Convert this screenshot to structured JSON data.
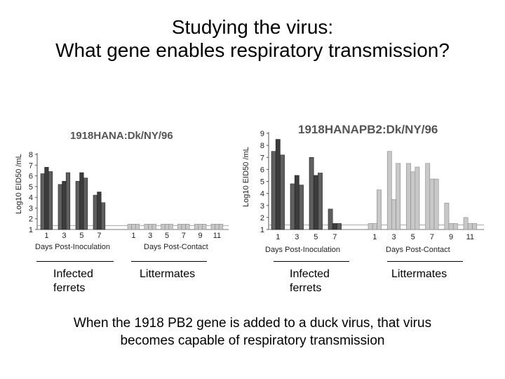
{
  "slide": {
    "title_line1": "Studying the virus:",
    "title_line2": "What gene enables respiratory transmission?",
    "caption_line1": "When the 1918 PB2 gene is added to a duck virus, that virus",
    "caption_line2": "becomes capable of respiratory transmission",
    "group_labels": {
      "left_infected": [
        "Infected",
        "ferrets"
      ],
      "left_littermates": "Littermates",
      "right_infected": [
        "Infected",
        "ferrets"
      ],
      "right_littermates": "Littermates"
    }
  },
  "colors": {
    "infected": "#5f5f5f",
    "infected_dark": "#3c3c3c",
    "contact": "#c8c8c8",
    "title_gray": "#555555"
  },
  "chart_data": [
    {
      "type": "bar",
      "title": "1918HANA:Dk/NY/96",
      "ylabel": "Log10 EID50 /mL",
      "ylim": [
        1,
        8
      ],
      "yticks": [
        1,
        2,
        3,
        4,
        5,
        6,
        7,
        8
      ],
      "inoculation": {
        "xlabel": "Days Post-Inoculation",
        "days": [
          "1",
          "3",
          "5",
          "7"
        ],
        "values": [
          [
            6.2,
            6.8,
            6.4
          ],
          [
            5.2,
            5.5,
            6.3
          ],
          [
            5.5,
            6.3,
            5.8
          ],
          [
            4.2,
            4.5,
            3.5
          ]
        ]
      },
      "contact": {
        "xlabel": "Days Post-Contact",
        "days": [
          "1",
          "3",
          "5",
          "7",
          "9",
          "11"
        ],
        "values": [
          [
            1.5,
            1.5,
            1.5
          ],
          [
            1.5,
            1.5,
            1.5
          ],
          [
            1.5,
            1.5,
            1.5
          ],
          [
            1.5,
            1.5,
            1.5
          ],
          [
            1.5,
            1.5,
            1.5
          ],
          [
            1.5,
            1.5,
            1.5
          ]
        ]
      }
    },
    {
      "type": "bar",
      "title": "1918HANAPB2:Dk/NY/96",
      "ylabel": "Log10 EID50 /mL",
      "ylim": [
        1,
        9
      ],
      "yticks": [
        1,
        2,
        3,
        4,
        5,
        6,
        7,
        8,
        9
      ],
      "inoculation": {
        "xlabel": "Days Post-Inoculation",
        "days": [
          "1",
          "3",
          "5",
          "7"
        ],
        "values": [
          [
            7.5,
            8.5,
            7.2
          ],
          [
            4.8,
            5.5,
            4.7
          ],
          [
            7.0,
            5.5,
            5.7
          ],
          [
            2.7,
            1.5,
            1.5
          ]
        ]
      },
      "contact": {
        "xlabel": "Days Post-Contact",
        "days": [
          "1",
          "3",
          "5",
          "7",
          "9",
          "11"
        ],
        "values": [
          [
            1.5,
            1.5,
            4.3
          ],
          [
            7.5,
            3.5,
            6.5
          ],
          [
            6.5,
            5.8,
            6.2
          ],
          [
            6.5,
            5.2,
            5.2
          ],
          [
            3.2,
            1.5,
            1.5
          ],
          [
            2.0,
            1.5,
            1.5
          ]
        ]
      }
    }
  ]
}
